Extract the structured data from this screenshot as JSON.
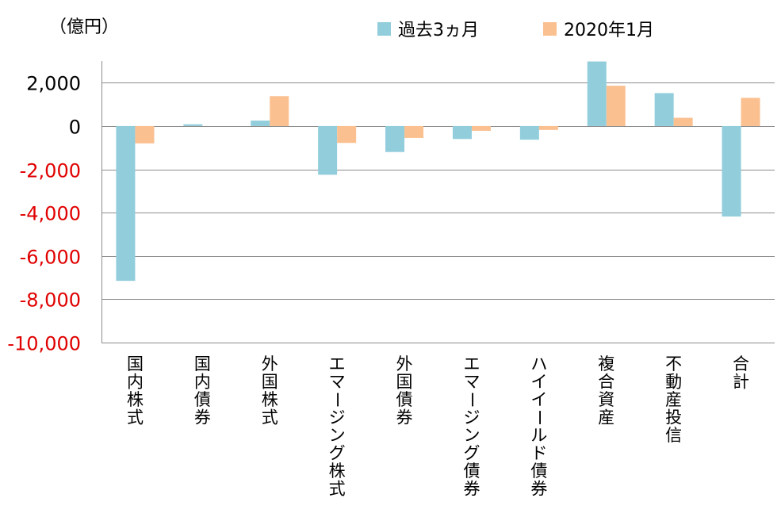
{
  "chart_data": {
    "type": "bar",
    "unit_label": "（億円）",
    "categories": [
      "国内株式",
      "国内債券",
      "外国株式",
      "エマージング株式",
      "外国債券",
      "エマージング債券",
      "ハイイールド債券",
      "複合資産",
      "不動産投信",
      "合計"
    ],
    "series": [
      {
        "name": "過去3ヵ月",
        "color": "#92CDDC",
        "values": [
          -7150,
          80,
          250,
          -2250,
          -1200,
          -600,
          -630,
          2980,
          1520,
          -4180
        ]
      },
      {
        "name": "2020年1月",
        "color": "#FAC090",
        "values": [
          -800,
          0,
          1380,
          -780,
          -550,
          -220,
          -180,
          1860,
          380,
          1300
        ]
      }
    ],
    "ylim": [
      -10000,
      3000
    ],
    "yticks": [
      2000,
      0,
      -2000,
      -4000,
      -6000,
      -8000,
      -10000
    ],
    "ytick_labels": [
      "2,000",
      "0",
      "-2,000",
      "-4,000",
      "-6,000",
      "-8,000",
      "-10,000"
    ],
    "positive_tick_color": "#000000",
    "negative_tick_color": "#E00000",
    "grid": true,
    "legend_position": "top"
  }
}
